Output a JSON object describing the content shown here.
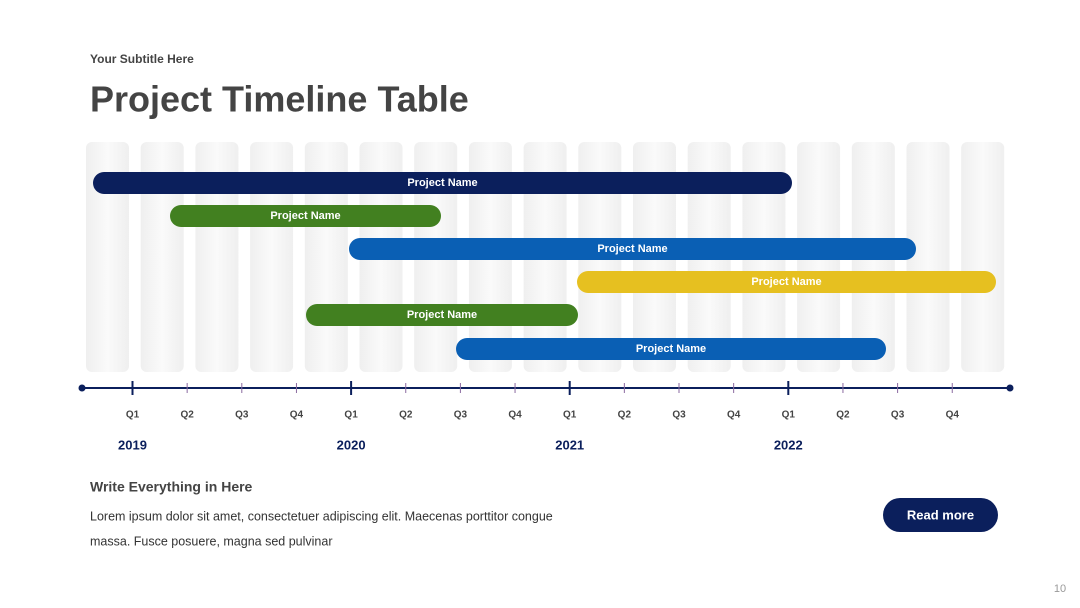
{
  "header": {
    "subtitle": "Your Subtitle Here",
    "title": "Project Timeline Table"
  },
  "timeline": {
    "tasks": [
      "Project Name",
      "Project Name",
      "Project Name",
      "Project Name",
      "Project Name",
      "Project Name"
    ],
    "quarters": [
      "Q1",
      "Q2",
      "Q3",
      "Q4",
      "Q1",
      "Q2",
      "Q3",
      "Q4",
      "Q1",
      "Q2",
      "Q3",
      "Q4",
      "Q1",
      "Q2",
      "Q3",
      "Q4"
    ],
    "years": [
      "2019",
      "2020",
      "2021",
      "2022"
    ]
  },
  "footer": {
    "heading": "Write Everything in Here",
    "lines": [
      "Lorem ipsum dolor sit amet, consectetuer adipiscing elit. Maecenas porttitor congue",
      "massa. Fusce posuere, magna sed pulvinar"
    ],
    "button": "Read more",
    "page_number": "10"
  }
}
